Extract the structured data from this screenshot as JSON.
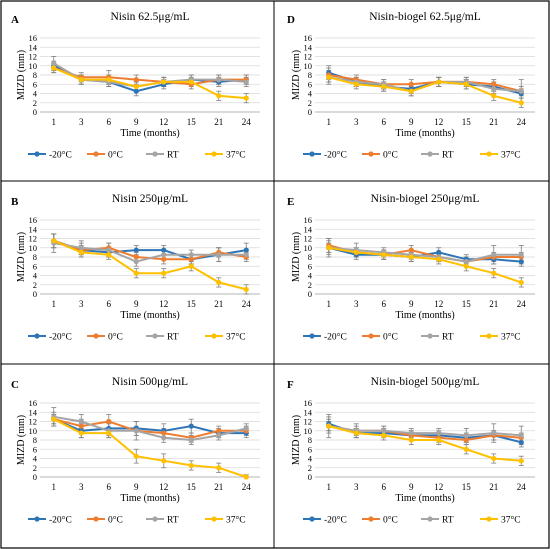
{
  "colors": {
    "-20°C": "#2E75B6",
    "0°C": "#ED7D31",
    "RT": "#A5A5A5",
    "37°C": "#FFC000"
  },
  "chart_data": [
    {
      "panel": "A",
      "type": "line",
      "title": "Nisin 62.5μg/mL",
      "xlabel": "Time (months)",
      "ylabel": "MIZD (mm)",
      "categories": [
        "1",
        "3",
        "6",
        "9",
        "12",
        "15",
        "21",
        "24"
      ],
      "ylim": [
        0,
        16
      ],
      "yticks": [
        0,
        2,
        4,
        6,
        8,
        10,
        12,
        14,
        16
      ],
      "legend": "bottom",
      "series": [
        {
          "name": "-20°C",
          "values": [
            10,
            7,
            6.5,
            4.5,
            6,
            7,
            6.5,
            7
          ],
          "errors": [
            1,
            1,
            1,
            1,
            1,
            1,
            1,
            1
          ]
        },
        {
          "name": "0°C",
          "values": [
            9.5,
            7.5,
            7.5,
            7,
            6.5,
            6,
            7,
            7
          ],
          "errors": [
            1,
            1,
            1.5,
            1,
            1,
            1,
            1,
            1
          ]
        },
        {
          "name": "RT",
          "values": [
            10.5,
            7,
            6.5,
            5.5,
            6.5,
            7,
            7,
            6.5
          ],
          "errors": [
            1.5,
            1,
            1,
            1,
            1,
            1,
            1,
            1
          ]
        },
        {
          "name": "37°C",
          "values": [
            9.5,
            7,
            7,
            5.5,
            6.5,
            6.5,
            3.5,
            3
          ],
          "errors": [
            1,
            1,
            1,
            1,
            1,
            1,
            1,
            1
          ]
        }
      ]
    },
    {
      "panel": "D",
      "type": "line",
      "title": "Nisin-biogel 62.5μg/mL",
      "xlabel": "Time (months)",
      "ylabel": "MIZD (mm)",
      "categories": [
        "1",
        "3",
        "6",
        "9",
        "12",
        "15",
        "21",
        "24"
      ],
      "ylim": [
        0,
        16
      ],
      "yticks": [
        0,
        2,
        4,
        6,
        8,
        10,
        12,
        14,
        16
      ],
      "legend": "bottom",
      "series": [
        {
          "name": "-20°C",
          "values": [
            8.5,
            6.5,
            5.5,
            5,
            6.5,
            6,
            5.5,
            4
          ],
          "errors": [
            1.5,
            1,
            1,
            1,
            1,
            1,
            1,
            1
          ]
        },
        {
          "name": "0°C",
          "values": [
            8,
            7,
            6,
            6,
            6.5,
            6.5,
            6,
            4.5
          ],
          "errors": [
            1.5,
            1,
            1,
            1,
            1,
            1,
            1,
            1
          ]
        },
        {
          "name": "RT",
          "values": [
            7.5,
            6.5,
            6,
            4.5,
            6.5,
            6.5,
            5,
            4.5
          ],
          "errors": [
            1.5,
            1,
            1,
            1,
            1,
            1,
            1,
            2.5
          ]
        },
        {
          "name": "37°C",
          "values": [
            7.5,
            6,
            5.5,
            4.5,
            6.5,
            6,
            3.5,
            2
          ],
          "errors": [
            1,
            1,
            1,
            1,
            1,
            1,
            1,
            1
          ]
        }
      ]
    },
    {
      "panel": "B",
      "type": "line",
      "title": "Nisin 250μg/mL",
      "xlabel": "Time (months)",
      "ylabel": "MIZD (mm)",
      "categories": [
        "1",
        "3",
        "6",
        "9",
        "12",
        "15",
        "21",
        "24"
      ],
      "ylim": [
        0,
        16
      ],
      "yticks": [
        0,
        2,
        4,
        6,
        8,
        10,
        12,
        14,
        16
      ],
      "legend": "bottom",
      "series": [
        {
          "name": "-20°C",
          "values": [
            11.5,
            9.5,
            9,
            9.5,
            9.5,
            7.5,
            8.5,
            9.5
          ],
          "errors": [
            1.5,
            1.5,
            1,
            1,
            1,
            1,
            1.5,
            1.5
          ]
        },
        {
          "name": "0°C",
          "values": [
            11.5,
            9.5,
            10,
            8,
            7.5,
            7.5,
            9,
            8
          ],
          "errors": [
            1.5,
            1,
            1,
            1,
            1,
            1,
            1,
            1
          ]
        },
        {
          "name": "RT",
          "values": [
            11,
            10,
            9.5,
            7,
            8.5,
            8.5,
            8.5,
            8.5
          ],
          "errors": [
            2,
            1.5,
            1.5,
            1,
            1,
            1,
            1.5,
            1
          ]
        },
        {
          "name": "37°C",
          "values": [
            11.5,
            9,
            8.5,
            4.5,
            4.5,
            6,
            2.5,
            1
          ],
          "errors": [
            1.5,
            1,
            1,
            1,
            1,
            1,
            1,
            1
          ]
        }
      ]
    },
    {
      "panel": "E",
      "type": "line",
      "title": "Nisin-biogel 250μg/mL",
      "xlabel": "Time (months)",
      "ylabel": "MIZD (mm)",
      "categories": [
        "1",
        "3",
        "6",
        "9",
        "12",
        "15",
        "21",
        "24"
      ],
      "ylim": [
        0,
        16
      ],
      "yticks": [
        0,
        2,
        4,
        6,
        8,
        10,
        12,
        14,
        16
      ],
      "legend": "bottom",
      "series": [
        {
          "name": "-20°C",
          "values": [
            10,
            8.5,
            8.5,
            8,
            9,
            7.5,
            7.5,
            7
          ],
          "errors": [
            1.5,
            1,
            1,
            1,
            1,
            1,
            1,
            1
          ]
        },
        {
          "name": "0°C",
          "values": [
            10.5,
            9,
            8.5,
            9.5,
            8,
            7,
            8,
            8
          ],
          "errors": [
            1.5,
            1,
            1,
            1,
            1,
            1,
            1,
            1
          ]
        },
        {
          "name": "RT",
          "values": [
            10,
            9.5,
            9,
            8.5,
            8,
            7,
            8.5,
            8.5
          ],
          "errors": [
            2,
            1.5,
            1,
            1,
            1,
            1,
            2,
            2
          ]
        },
        {
          "name": "37°C",
          "values": [
            10,
            9,
            8.5,
            8,
            7.5,
            6,
            4.5,
            2.5
          ],
          "errors": [
            1,
            1,
            1,
            1,
            1,
            1,
            1,
            1
          ]
        }
      ]
    },
    {
      "panel": "C",
      "type": "line",
      "title": "Nisin 500μg/mL",
      "xlabel": "Time (months)",
      "ylabel": "MIZD (mm)",
      "categories": [
        "1",
        "3",
        "6",
        "9",
        "12",
        "15",
        "21",
        "24"
      ],
      "ylim": [
        0,
        16
      ],
      "yticks": [
        0,
        2,
        4,
        6,
        8,
        10,
        12,
        14,
        16
      ],
      "legend": "bottom",
      "series": [
        {
          "name": "-20°C",
          "values": [
            12.5,
            10,
            10.5,
            10.5,
            10,
            11,
            9.5,
            9.5
          ],
          "errors": [
            1.5,
            1.5,
            1.5,
            1.5,
            1.5,
            1.5,
            1,
            1
          ]
        },
        {
          "name": "0°C",
          "values": [
            12.5,
            11,
            12,
            10,
            9.5,
            8.5,
            10,
            10
          ],
          "errors": [
            1,
            1.5,
            1.5,
            1,
            1,
            1,
            1,
            1
          ]
        },
        {
          "name": "RT",
          "values": [
            13,
            12,
            10,
            10,
            8.5,
            8,
            9,
            10.5
          ],
          "errors": [
            2,
            1.5,
            1.5,
            2,
            1,
            1,
            1,
            1
          ]
        },
        {
          "name": "37°C",
          "values": [
            12.5,
            9.5,
            9.5,
            4.5,
            3.5,
            2.5,
            2,
            0
          ],
          "errors": [
            1,
            1,
            1,
            1.5,
            1.5,
            1,
            1,
            0.5
          ]
        }
      ]
    },
    {
      "panel": "F",
      "type": "line",
      "title": "Nisin-biogel 500μg/mL",
      "xlabel": "Time (months)",
      "ylabel": "MIZD (mm)",
      "categories": [
        "1",
        "3",
        "6",
        "9",
        "12",
        "15",
        "21",
        "24"
      ],
      "ylim": [
        0,
        16
      ],
      "yticks": [
        0,
        2,
        4,
        6,
        8,
        10,
        12,
        14,
        16
      ],
      "legend": "bottom",
      "series": [
        {
          "name": "-20°C",
          "values": [
            11.5,
            9.5,
            9.5,
            9,
            9,
            8.5,
            9,
            7.5
          ],
          "errors": [
            1.5,
            1,
            1,
            1,
            1,
            1,
            1,
            1
          ]
        },
        {
          "name": "0°C",
          "values": [
            11,
            10,
            10,
            9,
            8.5,
            8,
            9,
            8.5
          ],
          "errors": [
            1.5,
            1,
            1,
            1,
            1,
            1,
            1,
            1
          ]
        },
        {
          "name": "RT",
          "values": [
            11,
            10,
            10,
            9.5,
            9.5,
            9,
            9.5,
            9
          ],
          "errors": [
            2.5,
            1.5,
            1,
            1,
            1,
            1.5,
            2,
            2
          ]
        },
        {
          "name": "37°C",
          "values": [
            11,
            9.5,
            9,
            8,
            8,
            6,
            4,
            3.5
          ],
          "errors": [
            1,
            1,
            1,
            1,
            1,
            1,
            1,
            1
          ]
        }
      ]
    }
  ]
}
